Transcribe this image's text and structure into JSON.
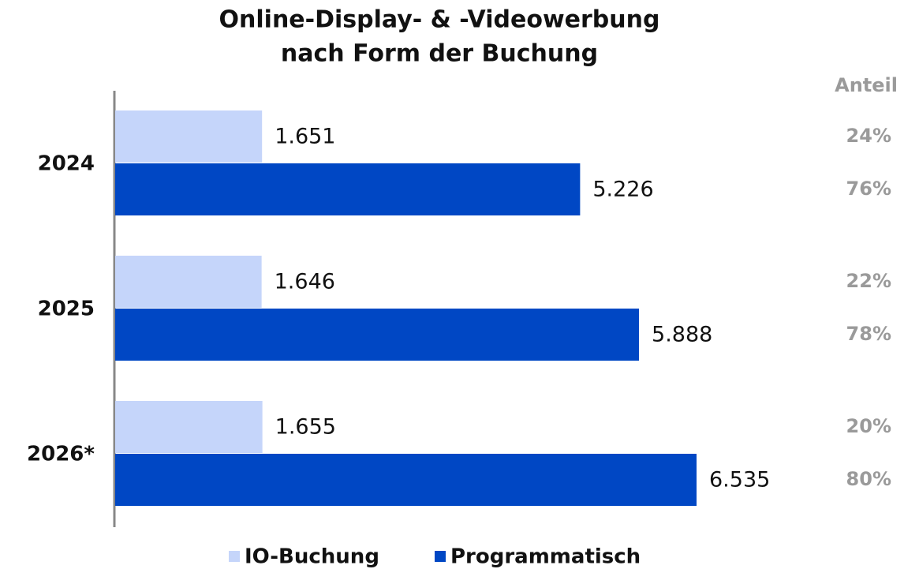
{
  "chart_data": {
    "type": "hbar",
    "title": [
      "Online-Display- & -Videowerbung",
      "nach Form der Buchung"
    ],
    "share_header": "Anteil",
    "categories": [
      "2024",
      "2025",
      "2026*"
    ],
    "series": [
      {
        "name": "IO-Buchung",
        "color": "#c5d5fa",
        "values": [
          1651,
          1646,
          1655
        ],
        "value_labels": [
          "1.651",
          "1.646",
          "1.655"
        ],
        "shares": [
          {
            "value": 24,
            "label": "24%"
          },
          {
            "value": 22,
            "label": "22%"
          },
          {
            "value": 20,
            "label": "20%"
          }
        ]
      },
      {
        "name": "Programmatisch",
        "color": "#0047c4",
        "values": [
          5226,
          5888,
          6535
        ],
        "value_labels": [
          "5.226",
          "5.888",
          "6.535"
        ],
        "shares": [
          {
            "value": 76,
            "label": "76%"
          },
          {
            "value": 78,
            "label": "78%"
          },
          {
            "value": 80,
            "label": "80%"
          }
        ]
      }
    ]
  }
}
